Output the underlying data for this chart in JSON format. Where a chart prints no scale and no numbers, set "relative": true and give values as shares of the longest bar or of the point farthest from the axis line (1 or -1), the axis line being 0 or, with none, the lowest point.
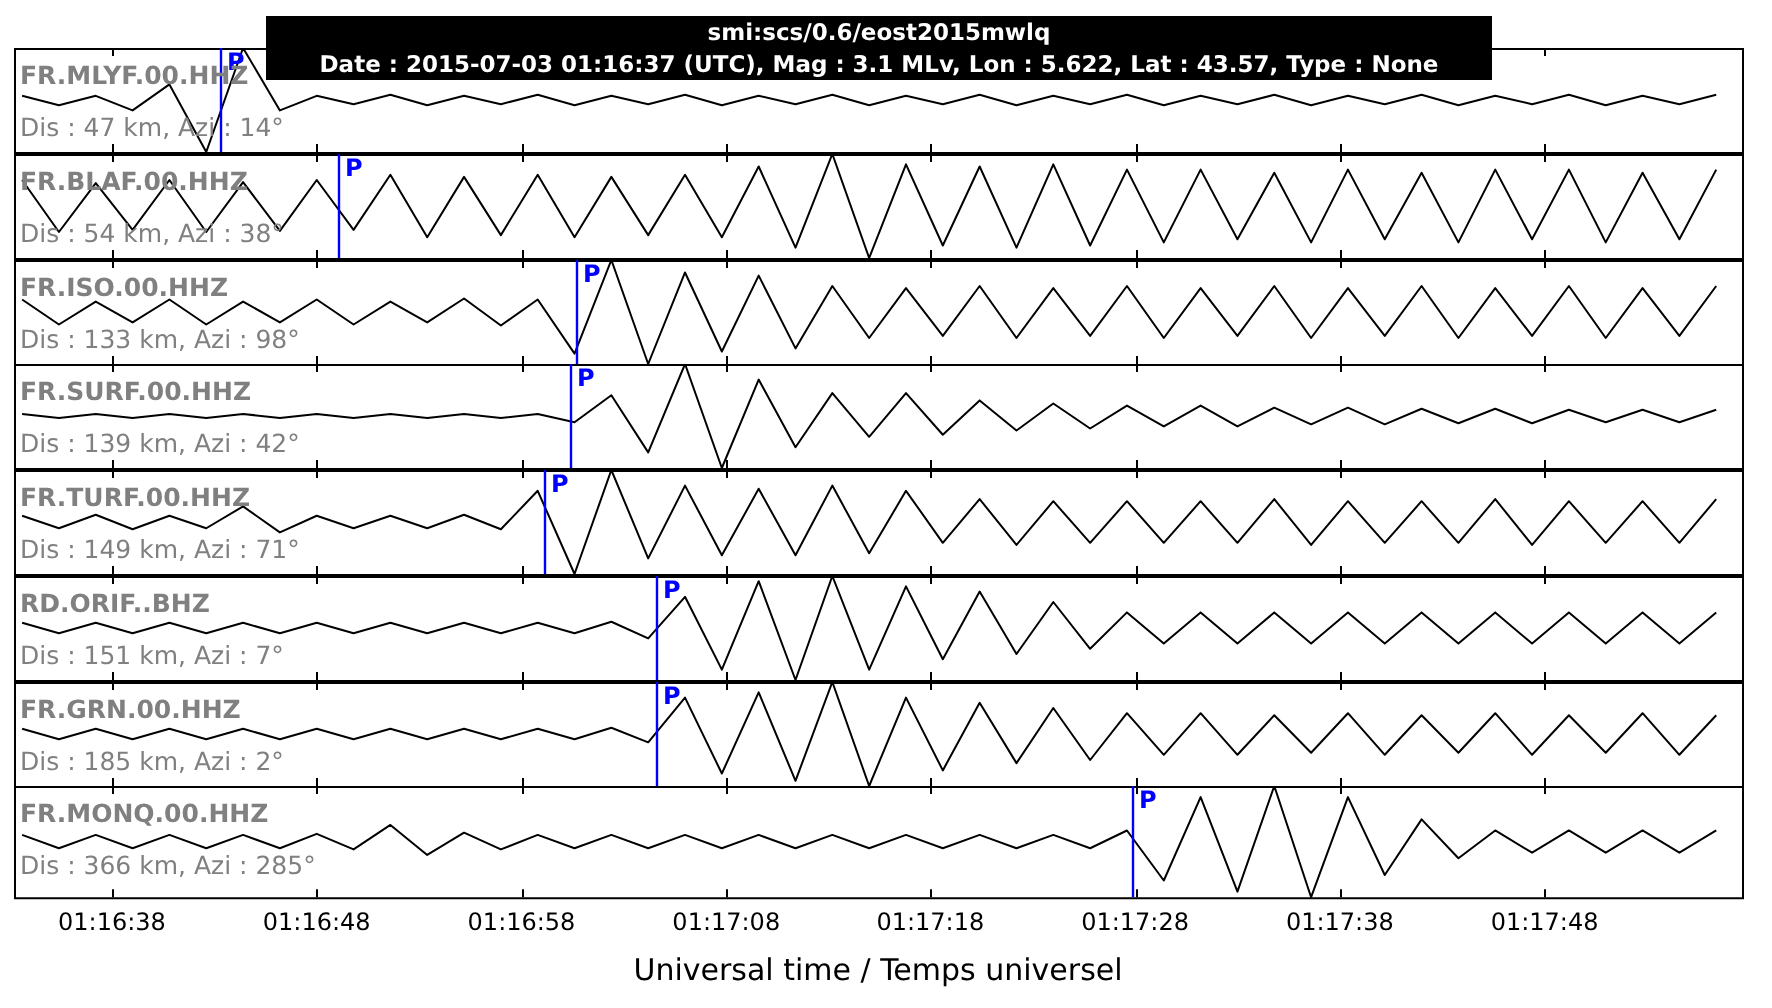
{
  "chart_data": [
    {
      "type": "line",
      "relative": true,
      "marker": "none",
      "title": "smi:scs/0.6/eost2015mwlq",
      "subtitle": "Date : 2015-07-03 01:16:37 (UTC), Mag : 3.1 MLv, Lon : 5.622, Lat : 43.57, Type : None",
      "tick_labels": false,
      "xlim": [
        1.27589,
        1.29935
      ],
      "xticks": [
        {
          "value": 1.27722,
          "label": null
        },
        {
          "value": 1.28,
          "label": null
        },
        {
          "value": 1.28278,
          "label": null
        },
        {
          "value": 1.28556,
          "label": null
        },
        {
          "value": 1.28833,
          "label": null
        },
        {
          "value": 1.29111,
          "label": null
        },
        {
          "value": 1.29389,
          "label": null
        },
        {
          "value": 1.29667,
          "label": null
        }
      ],
      "annotations": [
        "FR.MLYF.00.HHZ",
        "Dis : 47 km, Azi : 14°"
      ],
      "ref_lines": [
        {
          "axis": "x",
          "value": 1.27869,
          "label": "P",
          "color": "#0000ff"
        }
      ],
      "color": "#000000",
      "x": [
        1.276,
        1.2765,
        1.277,
        1.2775,
        1.278,
        1.2785,
        1.279,
        1.2795,
        1.28,
        1.2805,
        1.281,
        1.2815,
        1.282,
        1.2825,
        1.283,
        1.2835,
        1.284,
        1.2845,
        1.285,
        1.2855,
        1.286,
        1.2865,
        1.287,
        1.2875,
        1.288,
        1.2885,
        1.289,
        1.2895,
        1.29,
        1.2905,
        1.291,
        1.2915,
        1.292,
        1.2925,
        1.293,
        1.2935,
        1.294,
        1.2945,
        1.295,
        1.2955,
        1.296,
        1.2965,
        1.297,
        1.2975,
        1.298,
        1.2985,
        1.299
      ],
      "values": [
        0.54,
        0.45,
        0.54,
        0.4,
        0.65,
        0,
        1,
        0.4,
        0.54,
        0.46,
        0.55,
        0.45,
        0.54,
        0.46,
        0.55,
        0.45,
        0.54,
        0.46,
        0.55,
        0.45,
        0.54,
        0.46,
        0.55,
        0.45,
        0.54,
        0.46,
        0.55,
        0.45,
        0.54,
        0.46,
        0.55,
        0.45,
        0.54,
        0.46,
        0.55,
        0.45,
        0.54,
        0.46,
        0.55,
        0.45,
        0.54,
        0.46,
        0.55,
        0.45,
        0.54,
        0.46,
        0.55
      ]
    },
    {
      "type": "line",
      "relative": true,
      "marker": "none",
      "tick_labels": false,
      "xlim": [
        1.27589,
        1.29935
      ],
      "xticks": [
        {
          "value": 1.27722,
          "label": null
        },
        {
          "value": 1.28,
          "label": null
        },
        {
          "value": 1.28278,
          "label": null
        },
        {
          "value": 1.28556,
          "label": null
        },
        {
          "value": 1.28833,
          "label": null
        },
        {
          "value": 1.29111,
          "label": null
        },
        {
          "value": 1.29389,
          "label": null
        },
        {
          "value": 1.29667,
          "label": null
        }
      ],
      "annotations": [
        "FR.BLAF.00.HHZ",
        "Dis : 54 km, Azi : 38°"
      ],
      "ref_lines": [
        {
          "axis": "x",
          "value": 1.28029,
          "label": "P",
          "color": "#0000ff"
        }
      ],
      "color": "#000000",
      "x": [
        1.276,
        1.2765,
        1.277,
        1.2775,
        1.278,
        1.2785,
        1.279,
        1.2795,
        1.28,
        1.2805,
        1.281,
        1.2815,
        1.282,
        1.2825,
        1.283,
        1.2835,
        1.284,
        1.2845,
        1.285,
        1.2855,
        1.286,
        1.2865,
        1.287,
        1.2875,
        1.288,
        1.2885,
        1.289,
        1.2895,
        1.29,
        1.2905,
        1.291,
        1.2915,
        1.292,
        1.2925,
        1.293,
        1.2935,
        1.294,
        1.2945,
        1.295,
        1.2955,
        1.296,
        1.2965,
        1.297,
        1.2975,
        1.298,
        1.2985,
        1.299
      ],
      "values": [
        0.75,
        0.25,
        0.72,
        0.27,
        0.75,
        0.25,
        0.73,
        0.26,
        0.75,
        0.27,
        0.8,
        0.2,
        0.78,
        0.22,
        0.8,
        0.2,
        0.78,
        0.22,
        0.8,
        0.2,
        0.88,
        0.1,
        1,
        0,
        0.9,
        0.12,
        0.88,
        0.1,
        0.9,
        0.12,
        0.85,
        0.15,
        0.85,
        0.18,
        0.82,
        0.15,
        0.85,
        0.18,
        0.82,
        0.15,
        0.85,
        0.18,
        0.85,
        0.15,
        0.82,
        0.18,
        0.85
      ]
    },
    {
      "type": "line",
      "relative": true,
      "marker": "none",
      "tick_labels": false,
      "xlim": [
        1.27589,
        1.29935
      ],
      "xticks": [
        {
          "value": 1.27722,
          "label": null
        },
        {
          "value": 1.28,
          "label": null
        },
        {
          "value": 1.28278,
          "label": null
        },
        {
          "value": 1.28556,
          "label": null
        },
        {
          "value": 1.28833,
          "label": null
        },
        {
          "value": 1.29111,
          "label": null
        },
        {
          "value": 1.29389,
          "label": null
        },
        {
          "value": 1.29667,
          "label": null
        }
      ],
      "annotations": [
        "FR.ISO.00.HHZ",
        "Dis : 133 km, Azi : 98°"
      ],
      "ref_lines": [
        {
          "axis": "x",
          "value": 1.28352,
          "label": "P",
          "color": "#0000ff"
        }
      ],
      "color": "#000000",
      "x": [
        1.276,
        1.2765,
        1.277,
        1.2775,
        1.278,
        1.2785,
        1.279,
        1.2795,
        1.28,
        1.2805,
        1.281,
        1.2815,
        1.282,
        1.2825,
        1.283,
        1.2835,
        1.284,
        1.2845,
        1.285,
        1.2855,
        1.286,
        1.2865,
        1.287,
        1.2875,
        1.288,
        1.2885,
        1.289,
        1.2895,
        1.29,
        1.2905,
        1.291,
        1.2915,
        1.292,
        1.2925,
        1.293,
        1.2935,
        1.294,
        1.2945,
        1.295,
        1.2955,
        1.296,
        1.2965,
        1.297,
        1.2975,
        1.298,
        1.2985,
        1.299
      ],
      "values": [
        0.62,
        0.38,
        0.6,
        0.4,
        0.62,
        0.38,
        0.6,
        0.4,
        0.62,
        0.38,
        0.6,
        0.4,
        0.63,
        0.37,
        0.62,
        0.1,
        1,
        0,
        0.88,
        0.12,
        0.85,
        0.15,
        0.75,
        0.25,
        0.73,
        0.27,
        0.75,
        0.25,
        0.73,
        0.27,
        0.75,
        0.25,
        0.73,
        0.27,
        0.75,
        0.25,
        0.73,
        0.27,
        0.75,
        0.25,
        0.73,
        0.27,
        0.75,
        0.25,
        0.73,
        0.27,
        0.75
      ]
    },
    {
      "type": "line",
      "relative": true,
      "marker": "none",
      "tick_labels": false,
      "xlim": [
        1.27589,
        1.29935
      ],
      "xticks": [
        {
          "value": 1.27722,
          "label": null
        },
        {
          "value": 1.28,
          "label": null
        },
        {
          "value": 1.28278,
          "label": null
        },
        {
          "value": 1.28556,
          "label": null
        },
        {
          "value": 1.28833,
          "label": null
        },
        {
          "value": 1.29111,
          "label": null
        },
        {
          "value": 1.29389,
          "label": null
        },
        {
          "value": 1.29667,
          "label": null
        }
      ],
      "annotations": [
        "FR.SURF.00.HHZ",
        "Dis : 139 km, Azi : 42°"
      ],
      "ref_lines": [
        {
          "axis": "x",
          "value": 1.28344,
          "label": "P",
          "color": "#0000ff"
        }
      ],
      "color": "#000000",
      "x": [
        1.276,
        1.2765,
        1.277,
        1.2775,
        1.278,
        1.2785,
        1.279,
        1.2795,
        1.28,
        1.2805,
        1.281,
        1.2815,
        1.282,
        1.2825,
        1.283,
        1.2835,
        1.284,
        1.2845,
        1.285,
        1.2855,
        1.286,
        1.2865,
        1.287,
        1.2875,
        1.288,
        1.2885,
        1.289,
        1.2895,
        1.29,
        1.2905,
        1.291,
        1.2915,
        1.292,
        1.2925,
        1.293,
        1.2935,
        1.294,
        1.2945,
        1.295,
        1.2955,
        1.296,
        1.2965,
        1.297,
        1.2975,
        1.298,
        1.2985,
        1.299
      ],
      "values": [
        0.52,
        0.48,
        0.52,
        0.48,
        0.52,
        0.48,
        0.52,
        0.48,
        0.52,
        0.48,
        0.52,
        0.48,
        0.52,
        0.48,
        0.52,
        0.44,
        0.7,
        0.15,
        1,
        0,
        0.85,
        0.2,
        0.72,
        0.3,
        0.72,
        0.32,
        0.65,
        0.36,
        0.62,
        0.38,
        0.6,
        0.4,
        0.6,
        0.4,
        0.58,
        0.42,
        0.58,
        0.42,
        0.57,
        0.43,
        0.57,
        0.43,
        0.56,
        0.44,
        0.56,
        0.44,
        0.56
      ]
    },
    {
      "type": "line",
      "relative": true,
      "marker": "none",
      "tick_labels": false,
      "xlim": [
        1.27589,
        1.29935
      ],
      "xticks": [
        {
          "value": 1.27722,
          "label": null
        },
        {
          "value": 1.28,
          "label": null
        },
        {
          "value": 1.28278,
          "label": null
        },
        {
          "value": 1.28556,
          "label": null
        },
        {
          "value": 1.28833,
          "label": null
        },
        {
          "value": 1.29111,
          "label": null
        },
        {
          "value": 1.29389,
          "label": null
        },
        {
          "value": 1.29667,
          "label": null
        }
      ],
      "annotations": [
        "FR.TURF.00.HHZ",
        "Dis : 149 km, Azi : 71°"
      ],
      "ref_lines": [
        {
          "axis": "x",
          "value": 1.28308,
          "label": "P",
          "color": "#0000ff"
        }
      ],
      "color": "#000000",
      "x": [
        1.276,
        1.2765,
        1.277,
        1.2775,
        1.278,
        1.2785,
        1.279,
        1.2795,
        1.28,
        1.2805,
        1.281,
        1.2815,
        1.282,
        1.2825,
        1.283,
        1.2835,
        1.284,
        1.2845,
        1.285,
        1.2855,
        1.286,
        1.2865,
        1.287,
        1.2875,
        1.288,
        1.2885,
        1.289,
        1.2895,
        1.29,
        1.2905,
        1.291,
        1.2915,
        1.292,
        1.2925,
        1.293,
        1.2935,
        1.294,
        1.2945,
        1.295,
        1.2955,
        1.296,
        1.2965,
        1.297,
        1.2975,
        1.298,
        1.2985,
        1.299
      ],
      "values": [
        0.56,
        0.44,
        0.57,
        0.43,
        0.56,
        0.44,
        0.65,
        0.4,
        0.56,
        0.44,
        0.56,
        0.44,
        0.57,
        0.43,
        0.8,
        0,
        1,
        0.15,
        0.85,
        0.18,
        0.82,
        0.18,
        0.85,
        0.2,
        0.8,
        0.3,
        0.72,
        0.28,
        0.7,
        0.3,
        0.7,
        0.3,
        0.7,
        0.3,
        0.72,
        0.28,
        0.7,
        0.3,
        0.7,
        0.3,
        0.72,
        0.28,
        0.7,
        0.3,
        0.7,
        0.3,
        0.72
      ]
    },
    {
      "type": "line",
      "relative": true,
      "marker": "none",
      "tick_labels": false,
      "xlim": [
        1.27589,
        1.29935
      ],
      "xticks": [
        {
          "value": 1.27722,
          "label": null
        },
        {
          "value": 1.28,
          "label": null
        },
        {
          "value": 1.28278,
          "label": null
        },
        {
          "value": 1.28556,
          "label": null
        },
        {
          "value": 1.28833,
          "label": null
        },
        {
          "value": 1.29111,
          "label": null
        },
        {
          "value": 1.29389,
          "label": null
        },
        {
          "value": 1.29667,
          "label": null
        }
      ],
      "annotations": [
        "RD.ORIF..BHZ",
        "Dis : 151 km, Azi : 7°"
      ],
      "ref_lines": [
        {
          "axis": "x",
          "value": 1.28461,
          "label": "P",
          "color": "#0000ff"
        }
      ],
      "color": "#000000",
      "x": [
        1.276,
        1.2765,
        1.277,
        1.2775,
        1.278,
        1.2785,
        1.279,
        1.2795,
        1.28,
        1.2805,
        1.281,
        1.2815,
        1.282,
        1.2825,
        1.283,
        1.2835,
        1.284,
        1.2845,
        1.285,
        1.2855,
        1.286,
        1.2865,
        1.287,
        1.2875,
        1.288,
        1.2885,
        1.289,
        1.2895,
        1.29,
        1.2905,
        1.291,
        1.2915,
        1.292,
        1.2925,
        1.293,
        1.2935,
        1.294,
        1.2945,
        1.295,
        1.2955,
        1.296,
        1.2965,
        1.297,
        1.2975,
        1.298,
        1.2985,
        1.299
      ],
      "values": [
        0.55,
        0.45,
        0.55,
        0.45,
        0.55,
        0.45,
        0.55,
        0.45,
        0.55,
        0.45,
        0.55,
        0.45,
        0.55,
        0.45,
        0.55,
        0.45,
        0.56,
        0.4,
        0.8,
        0.1,
        0.95,
        0,
        1,
        0.1,
        0.9,
        0.2,
        0.85,
        0.25,
        0.75,
        0.3,
        0.65,
        0.35,
        0.65,
        0.35,
        0.65,
        0.35,
        0.65,
        0.35,
        0.65,
        0.35,
        0.65,
        0.35,
        0.65,
        0.35,
        0.65,
        0.35,
        0.65
      ]
    },
    {
      "type": "line",
      "relative": true,
      "marker": "none",
      "tick_labels": false,
      "xlim": [
        1.27589,
        1.29935
      ],
      "xticks": [
        {
          "value": 1.27722,
          "label": null
        },
        {
          "value": 1.28,
          "label": null
        },
        {
          "value": 1.28278,
          "label": null
        },
        {
          "value": 1.28556,
          "label": null
        },
        {
          "value": 1.28833,
          "label": null
        },
        {
          "value": 1.29111,
          "label": null
        },
        {
          "value": 1.29389,
          "label": null
        },
        {
          "value": 1.29667,
          "label": null
        }
      ],
      "annotations": [
        "FR.GRN.00.HHZ",
        "Dis : 185 km, Azi : 2°"
      ],
      "ref_lines": [
        {
          "axis": "x",
          "value": 1.28461,
          "label": "P",
          "color": "#0000ff"
        }
      ],
      "color": "#000000",
      "x": [
        1.276,
        1.2765,
        1.277,
        1.2775,
        1.278,
        1.2785,
        1.279,
        1.2795,
        1.28,
        1.2805,
        1.281,
        1.2815,
        1.282,
        1.2825,
        1.283,
        1.2835,
        1.284,
        1.2845,
        1.285,
        1.2855,
        1.286,
        1.2865,
        1.287,
        1.2875,
        1.288,
        1.2885,
        1.289,
        1.2895,
        1.29,
        1.2905,
        1.291,
        1.2915,
        1.292,
        1.2925,
        1.293,
        1.2935,
        1.294,
        1.2945,
        1.295,
        1.2955,
        1.296,
        1.2965,
        1.297,
        1.2975,
        1.298,
        1.2985,
        1.299
      ],
      "values": [
        0.55,
        0.45,
        0.55,
        0.45,
        0.55,
        0.45,
        0.55,
        0.45,
        0.55,
        0.45,
        0.55,
        0.45,
        0.55,
        0.45,
        0.55,
        0.45,
        0.56,
        0.42,
        0.85,
        0.12,
        0.9,
        0.05,
        1,
        0,
        0.85,
        0.15,
        0.8,
        0.22,
        0.75,
        0.25,
        0.7,
        0.3,
        0.7,
        0.3,
        0.68,
        0.32,
        0.7,
        0.3,
        0.68,
        0.32,
        0.7,
        0.3,
        0.68,
        0.32,
        0.7,
        0.3,
        0.68
      ]
    },
    {
      "type": "line",
      "relative": true,
      "marker": "none",
      "tick_labels": "x",
      "xlabel": "Universal time / Temps universel",
      "xlim": [
        1.27589,
        1.29935
      ],
      "xticks": [
        {
          "value": 1.27722,
          "label": "01:16:38"
        },
        {
          "value": 1.28,
          "label": "01:16:48"
        },
        {
          "value": 1.28278,
          "label": "01:16:58"
        },
        {
          "value": 1.28556,
          "label": "01:17:08"
        },
        {
          "value": 1.28833,
          "label": "01:17:18"
        },
        {
          "value": 1.29111,
          "label": "01:17:28"
        },
        {
          "value": 1.29389,
          "label": "01:17:38"
        },
        {
          "value": 1.29667,
          "label": "01:17:48"
        }
      ],
      "annotations": [
        "FR.MONQ.00.HHZ",
        "Dis : 366 km, Azi : 285°"
      ],
      "ref_lines": [
        {
          "axis": "x",
          "value": 1.29107,
          "label": "P",
          "color": "#0000ff"
        }
      ],
      "color": "#000000",
      "x": [
        1.276,
        1.2765,
        1.277,
        1.2775,
        1.278,
        1.2785,
        1.279,
        1.2795,
        1.28,
        1.2805,
        1.281,
        1.2815,
        1.282,
        1.2825,
        1.283,
        1.2835,
        1.284,
        1.2845,
        1.285,
        1.2855,
        1.286,
        1.2865,
        1.287,
        1.2875,
        1.288,
        1.2885,
        1.289,
        1.2895,
        1.29,
        1.2905,
        1.291,
        1.2915,
        1.292,
        1.2925,
        1.293,
        1.2935,
        1.294,
        1.2945,
        1.295,
        1.2955,
        1.296,
        1.2965,
        1.297,
        1.2975,
        1.298,
        1.2985,
        1.299
      ],
      "values": [
        0.56,
        0.44,
        0.56,
        0.44,
        0.56,
        0.44,
        0.56,
        0.44,
        0.57,
        0.43,
        0.65,
        0.38,
        0.58,
        0.43,
        0.56,
        0.44,
        0.56,
        0.44,
        0.56,
        0.44,
        0.56,
        0.44,
        0.56,
        0.44,
        0.56,
        0.44,
        0.56,
        0.44,
        0.56,
        0.44,
        0.6,
        0.15,
        0.9,
        0.05,
        1,
        0,
        0.9,
        0.2,
        0.7,
        0.35,
        0.6,
        0.4,
        0.6,
        0.4,
        0.6,
        0.4,
        0.6
      ]
    }
  ]
}
